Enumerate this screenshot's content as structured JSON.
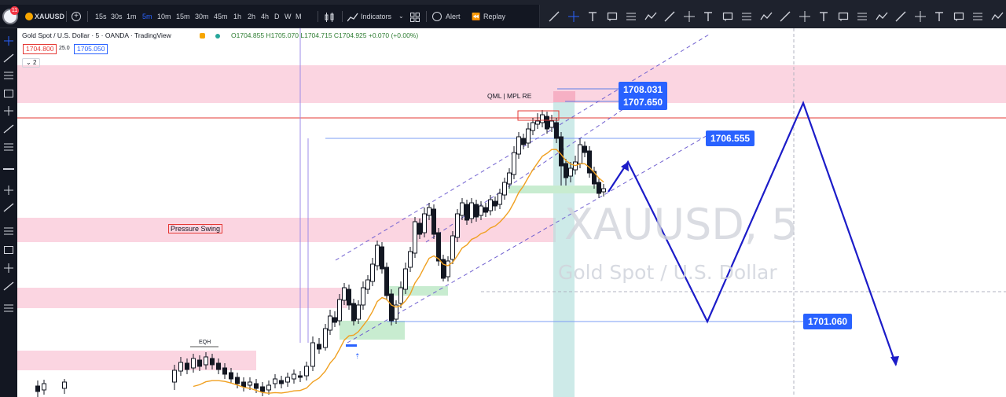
{
  "toolbar": {
    "symbol": "XAUUSD",
    "timeframes": [
      "15s",
      "30s",
      "1m",
      "5m",
      "10m",
      "15m",
      "30m",
      "45m",
      "1h",
      "2h",
      "4h",
      "D",
      "W",
      "M"
    ],
    "active_timeframe": "5m",
    "indicators_label": "Indicators",
    "alert_label": "Alert",
    "replay_label": "Replay",
    "notification_count": "11"
  },
  "legend": {
    "title": "Gold Spot / U.S. Dollar · 5 · OANDA · TradingView",
    "ohlc": "O1704.855 H1705.070 L1704.715 C1704.925 +0.070 (+0.00%)",
    "bid": "1704.800",
    "spread": "25.0",
    "ask": "1705.050",
    "collapse_count": "2"
  },
  "watermark": {
    "symbol": "XAUUSD, 5",
    "name": "Gold Spot / U.S. Dollar"
  },
  "annotations": {
    "qml": "QML | MPL RE",
    "pressure_swing": "Pressure Swing",
    "eqh": "EQH"
  },
  "price_labels": {
    "p1": "1708.031",
    "p2": "1707.650",
    "p3": "1706.555",
    "p4": "1701.060"
  },
  "colors": {
    "zone_pink": "#f8c8d8",
    "zone_green": "#c8ecd0",
    "zone_teal": "#b2dfdb",
    "accent_blue": "#2962ff",
    "projection": "#1c1cc8",
    "ema": "#f0a020",
    "resistance": "#e53935"
  }
}
